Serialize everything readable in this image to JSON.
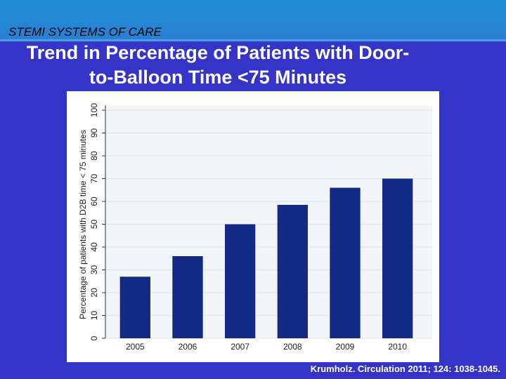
{
  "slide": {
    "header": "STEMI SYSTEMS OF CARE",
    "citation": "Krumholz. Circulation 2011; 124: 1038-1045."
  },
  "chart_data": {
    "type": "bar",
    "title": "Trend in Percentage of Patients with Door-to-Balloon Time <75 Minutes",
    "y_label": "Percentage of patients with D2B time < 75 minutes",
    "categories": [
      "2005",
      "2006",
      "2007",
      "2008",
      "2009",
      "2010"
    ],
    "values": [
      27,
      36,
      50,
      58.5,
      66,
      70
    ],
    "color": "#132a85",
    "ylim": [
      0,
      100
    ],
    "yticks": [
      0,
      10,
      20,
      30,
      40,
      50,
      60,
      70,
      80,
      90,
      100
    ],
    "grid": true
  }
}
